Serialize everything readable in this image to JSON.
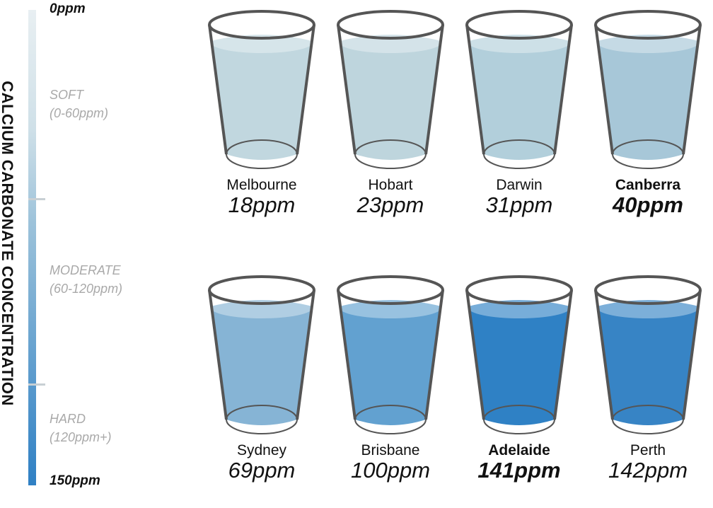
{
  "chart_data": {
    "type": "pictograph",
    "title": "",
    "ylabel": "CALCIUM CARBONATE CONCENTRATION",
    "scale": {
      "min_label": "0ppm",
      "max_label": "150ppm",
      "min": 0,
      "max": 150
    },
    "bands": [
      {
        "name": "SOFT",
        "range": "(0-60ppm)"
      },
      {
        "name": "MODERATE",
        "range": "(60-120ppm)"
      },
      {
        "name": "HARD",
        "range": "(120ppm+)"
      }
    ],
    "cities": [
      {
        "name": "Melbourne",
        "label": "18ppm",
        "value": 18,
        "highlight": false,
        "color": "#c1d7df"
      },
      {
        "name": "Hobart",
        "label": "23ppm",
        "value": 23,
        "highlight": false,
        "color": "#bed5dd"
      },
      {
        "name": "Darwin",
        "label": "31ppm",
        "value": 31,
        "highlight": false,
        "color": "#b2cfdb"
      },
      {
        "name": "Canberra",
        "label": "40ppm",
        "value": 40,
        "highlight": true,
        "color": "#a7c7d8"
      },
      {
        "name": "Sydney",
        "label": "69ppm",
        "value": 69,
        "highlight": false,
        "color": "#86b4d5"
      },
      {
        "name": "Brisbane",
        "label": "100ppm",
        "value": 100,
        "highlight": false,
        "color": "#62a1d0"
      },
      {
        "name": "Adelaide",
        "label": "141ppm",
        "value": 141,
        "highlight": true,
        "color": "#2f81c5"
      },
      {
        "name": "Perth",
        "label": "142ppm",
        "value": 142,
        "highlight": false,
        "color": "#3784c5"
      }
    ]
  }
}
